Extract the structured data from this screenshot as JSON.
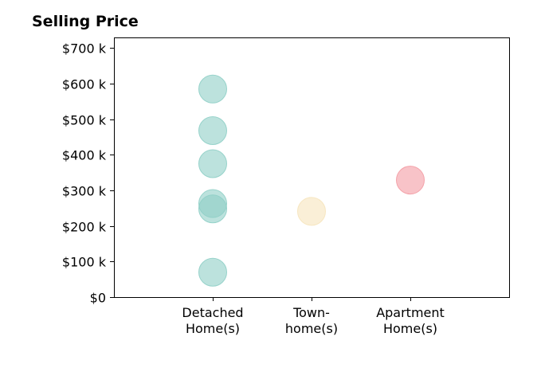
{
  "chart_data": {
    "type": "scatter",
    "title": "Selling Price",
    "xlabel": "",
    "ylabel": "",
    "categories": [
      [
        "Detached",
        "Home(s)"
      ],
      [
        "Town-",
        "home(s)"
      ],
      [
        "Apartment",
        "Home(s)"
      ]
    ],
    "ylim": [
      0,
      730
    ],
    "yticks": [
      0,
      100,
      200,
      300,
      400,
      500,
      600,
      700
    ],
    "ytick_labels": [
      "$0",
      "$100 k",
      "$200 k",
      "$300 k",
      "$400 k",
      "$500 k",
      "$600 k",
      "$700 k"
    ],
    "grid": false,
    "series": [
      {
        "category": 0,
        "color": "#8fcfc6",
        "values": [
          585,
          468,
          375,
          263,
          248,
          70
        ]
      },
      {
        "category": 1,
        "color": "#f6e4bd",
        "values": [
          241
        ]
      },
      {
        "category": 2,
        "color": "#f39ba3",
        "values": [
          329
        ]
      }
    ]
  }
}
